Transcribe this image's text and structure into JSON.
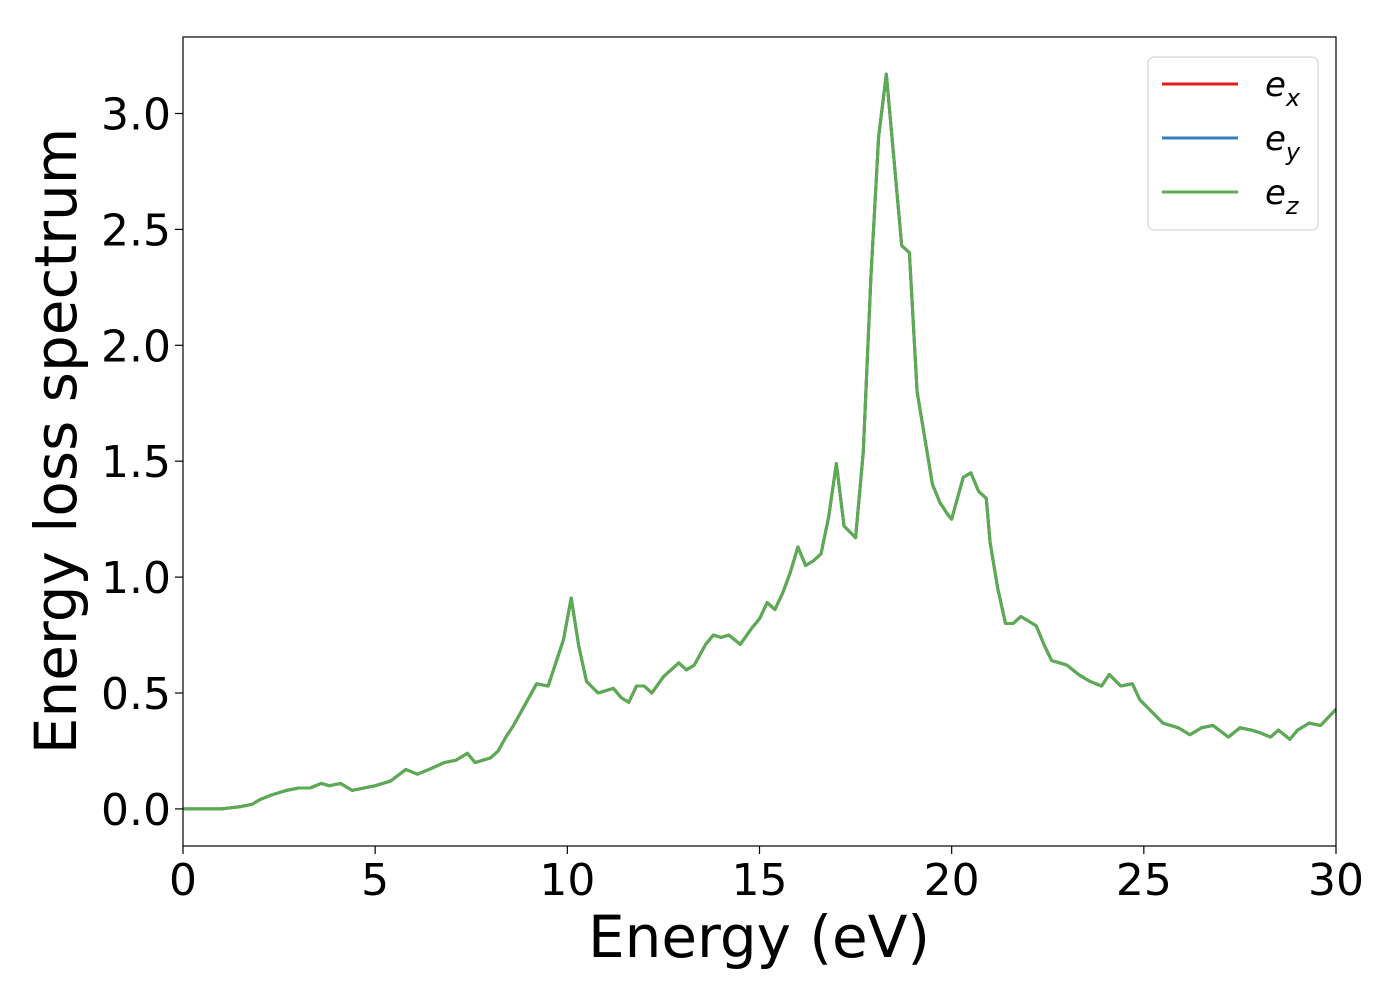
{
  "chart_data": {
    "type": "line",
    "title": "",
    "xlabel": "Energy (eV)",
    "ylabel": "Energy loss spectrum",
    "xlim": [
      0,
      30
    ],
    "ylim": [
      -0.16,
      3.33
    ],
    "xticks": [
      0,
      5,
      10,
      15,
      20,
      25,
      30
    ],
    "xtick_labels": [
      "0",
      "5",
      "10",
      "15",
      "20",
      "25",
      "30"
    ],
    "yticks": [
      0.0,
      0.5,
      1.0,
      1.5,
      2.0,
      2.5,
      3.0
    ],
    "ytick_labels": [
      "0.0",
      "0.5",
      "1.0",
      "1.5",
      "2.0",
      "2.5",
      "3.0"
    ],
    "grid": false,
    "legend_position": "top-right",
    "x": [
      0.0,
      0.5,
      1.0,
      1.5,
      1.8,
      2.0,
      2.3,
      2.7,
      3.0,
      3.3,
      3.6,
      3.8,
      4.1,
      4.4,
      4.7,
      5.0,
      5.4,
      5.8,
      6.1,
      6.4,
      6.8,
      7.1,
      7.4,
      7.6,
      8.0,
      8.2,
      8.4,
      8.6,
      8.9,
      9.2,
      9.5,
      9.8,
      9.9,
      10.1,
      10.3,
      10.5,
      10.8,
      11.2,
      11.4,
      11.6,
      11.8,
      12.0,
      12.2,
      12.5,
      12.9,
      13.1,
      13.3,
      13.6,
      13.8,
      14.0,
      14.2,
      14.5,
      14.8,
      15.0,
      15.2,
      15.4,
      15.6,
      15.8,
      16.0,
      16.2,
      16.4,
      16.6,
      16.8,
      17.0,
      17.2,
      17.5,
      17.7,
      17.9,
      18.1,
      18.3,
      18.5,
      18.7,
      18.9,
      19.1,
      19.3,
      19.5,
      19.7,
      19.9,
      20.0,
      20.3,
      20.5,
      20.7,
      20.9,
      21.0,
      21.2,
      21.4,
      21.6,
      21.8,
      22.0,
      22.2,
      22.4,
      22.6,
      22.8,
      23.0,
      23.3,
      23.6,
      23.9,
      24.1,
      24.4,
      24.7,
      24.9,
      25.2,
      25.5,
      25.9,
      26.2,
      26.5,
      26.8,
      27.2,
      27.5,
      27.8,
      28.0,
      28.3,
      28.5,
      28.8,
      29.0,
      29.3,
      29.6,
      30.0
    ],
    "series": [
      {
        "name": "e_x",
        "name_base": "e",
        "name_sub": "x",
        "color": "#e41a1c",
        "values": [
          0.0,
          0.0,
          0.0,
          0.01,
          0.02,
          0.04,
          0.06,
          0.08,
          0.09,
          0.09,
          0.11,
          0.1,
          0.11,
          0.08,
          0.09,
          0.1,
          0.12,
          0.17,
          0.15,
          0.17,
          0.2,
          0.21,
          0.24,
          0.2,
          0.22,
          0.25,
          0.31,
          0.36,
          0.45,
          0.54,
          0.53,
          0.68,
          0.73,
          0.91,
          0.7,
          0.55,
          0.5,
          0.52,
          0.48,
          0.46,
          0.53,
          0.53,
          0.5,
          0.57,
          0.63,
          0.6,
          0.62,
          0.71,
          0.75,
          0.74,
          0.75,
          0.71,
          0.78,
          0.82,
          0.89,
          0.86,
          0.93,
          1.02,
          1.13,
          1.05,
          1.07,
          1.1,
          1.26,
          1.49,
          1.22,
          1.17,
          1.54,
          2.3,
          2.9,
          3.17,
          2.8,
          2.43,
          2.4,
          1.8,
          1.6,
          1.4,
          1.32,
          1.27,
          1.25,
          1.43,
          1.45,
          1.37,
          1.34,
          1.15,
          0.95,
          0.8,
          0.8,
          0.83,
          0.81,
          0.79,
          0.71,
          0.64,
          0.63,
          0.62,
          0.58,
          0.55,
          0.53,
          0.58,
          0.53,
          0.54,
          0.47,
          0.42,
          0.37,
          0.35,
          0.32,
          0.35,
          0.36,
          0.31,
          0.35,
          0.34,
          0.33,
          0.31,
          0.34,
          0.3,
          0.34,
          0.37,
          0.36,
          0.43
        ]
      },
      {
        "name": "e_y",
        "name_base": "e",
        "name_sub": "y",
        "color": "#377eb8",
        "values": [
          0.0,
          0.0,
          0.0,
          0.01,
          0.02,
          0.04,
          0.06,
          0.08,
          0.09,
          0.09,
          0.11,
          0.1,
          0.11,
          0.08,
          0.09,
          0.1,
          0.12,
          0.17,
          0.15,
          0.17,
          0.2,
          0.21,
          0.24,
          0.2,
          0.22,
          0.25,
          0.31,
          0.36,
          0.45,
          0.54,
          0.53,
          0.68,
          0.73,
          0.91,
          0.7,
          0.55,
          0.5,
          0.52,
          0.48,
          0.46,
          0.53,
          0.53,
          0.5,
          0.57,
          0.63,
          0.6,
          0.62,
          0.71,
          0.75,
          0.74,
          0.75,
          0.71,
          0.78,
          0.82,
          0.89,
          0.86,
          0.93,
          1.02,
          1.13,
          1.05,
          1.07,
          1.1,
          1.26,
          1.49,
          1.22,
          1.17,
          1.54,
          2.3,
          2.9,
          3.17,
          2.8,
          2.43,
          2.4,
          1.8,
          1.6,
          1.4,
          1.32,
          1.27,
          1.25,
          1.43,
          1.45,
          1.37,
          1.34,
          1.15,
          0.95,
          0.8,
          0.8,
          0.83,
          0.81,
          0.79,
          0.71,
          0.64,
          0.63,
          0.62,
          0.58,
          0.55,
          0.53,
          0.58,
          0.53,
          0.54,
          0.47,
          0.42,
          0.37,
          0.35,
          0.32,
          0.35,
          0.36,
          0.31,
          0.35,
          0.34,
          0.33,
          0.31,
          0.34,
          0.3,
          0.34,
          0.37,
          0.36,
          0.43
        ]
      },
      {
        "name": "e_z",
        "name_base": "e",
        "name_sub": "z",
        "color": "#5aac50",
        "values": [
          0.0,
          0.0,
          0.0,
          0.01,
          0.02,
          0.04,
          0.06,
          0.08,
          0.09,
          0.09,
          0.11,
          0.1,
          0.11,
          0.08,
          0.09,
          0.1,
          0.12,
          0.17,
          0.15,
          0.17,
          0.2,
          0.21,
          0.24,
          0.2,
          0.22,
          0.25,
          0.31,
          0.36,
          0.45,
          0.54,
          0.53,
          0.68,
          0.73,
          0.91,
          0.7,
          0.55,
          0.5,
          0.52,
          0.48,
          0.46,
          0.53,
          0.53,
          0.5,
          0.57,
          0.63,
          0.6,
          0.62,
          0.71,
          0.75,
          0.74,
          0.75,
          0.71,
          0.78,
          0.82,
          0.89,
          0.86,
          0.93,
          1.02,
          1.13,
          1.05,
          1.07,
          1.1,
          1.26,
          1.49,
          1.22,
          1.17,
          1.54,
          2.3,
          2.9,
          3.17,
          2.8,
          2.43,
          2.4,
          1.8,
          1.6,
          1.4,
          1.32,
          1.27,
          1.25,
          1.43,
          1.45,
          1.37,
          1.34,
          1.15,
          0.95,
          0.8,
          0.8,
          0.83,
          0.81,
          0.79,
          0.71,
          0.64,
          0.63,
          0.62,
          0.58,
          0.55,
          0.53,
          0.58,
          0.53,
          0.54,
          0.47,
          0.42,
          0.37,
          0.35,
          0.32,
          0.35,
          0.36,
          0.31,
          0.35,
          0.34,
          0.33,
          0.31,
          0.34,
          0.3,
          0.34,
          0.37,
          0.36,
          0.43
        ]
      }
    ]
  }
}
